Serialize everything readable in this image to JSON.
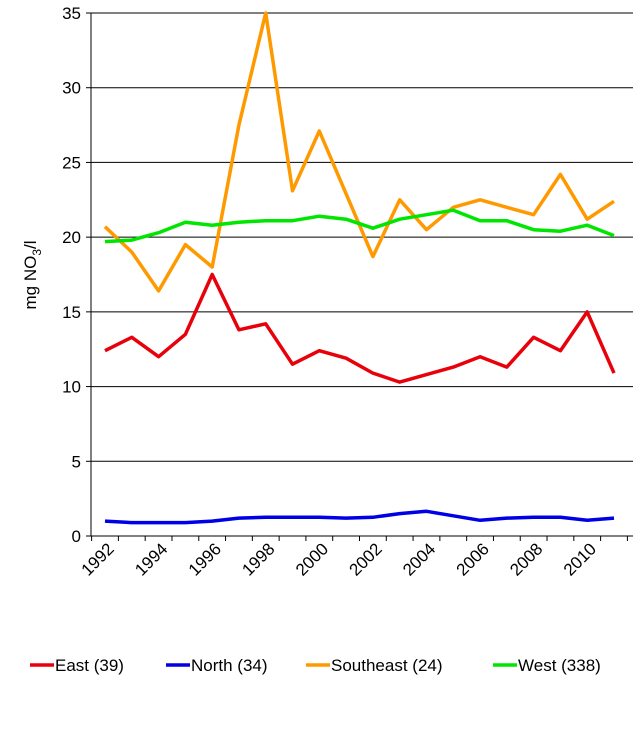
{
  "chart_data": {
    "type": "line",
    "title": "",
    "xlabel": "",
    "ylabel": "mg NO3/l",
    "ylabel_parts": {
      "main": "mg NO",
      "sub": "3",
      "tail": "/l"
    },
    "ylim": [
      0,
      35
    ],
    "yticks": [
      "0",
      "5",
      "10",
      "15",
      "20",
      "25",
      "30",
      "35"
    ],
    "x": [
      1992,
      1993,
      1994,
      1995,
      1996,
      1997,
      1998,
      1999,
      2000,
      2001,
      2002,
      2003,
      2004,
      2005,
      2006,
      2007,
      2008,
      2009,
      2010,
      2011
    ],
    "xtick_labels": [
      "1992",
      "1994",
      "1996",
      "1998",
      "2000",
      "2002",
      "2004",
      "2006",
      "2008",
      "2010"
    ],
    "grid": "horizontal",
    "legend_position": "bottom",
    "series": [
      {
        "name": "East (39)",
        "color": "#e8000b",
        "values": [
          12.4,
          13.3,
          12.0,
          13.5,
          17.5,
          13.8,
          14.2,
          11.5,
          12.4,
          11.9,
          10.9,
          10.3,
          10.8,
          11.3,
          12.0,
          11.3,
          13.3,
          12.4,
          15.0,
          10.9
        ]
      },
      {
        "name": "North (34)",
        "color": "#0000e6",
        "values": [
          1.0,
          0.9,
          0.9,
          0.9,
          1.0,
          1.2,
          1.25,
          1.25,
          1.25,
          1.2,
          1.25,
          1.5,
          1.65,
          1.35,
          1.05,
          1.2,
          1.25,
          1.25,
          1.05,
          1.2
        ]
      },
      {
        "name": "Southeast (24)",
        "color": "#ff9900",
        "values": [
          20.7,
          19.0,
          16.4,
          19.5,
          18.0,
          27.5,
          35.0,
          23.1,
          27.1,
          22.9,
          18.7,
          22.5,
          20.5,
          22.0,
          22.5,
          22.0,
          21.5,
          24.2,
          21.2,
          22.4
        ]
      },
      {
        "name": "West (338)",
        "color": "#00e600",
        "values": [
          19.7,
          19.8,
          20.3,
          21.0,
          20.8,
          21.0,
          21.1,
          21.1,
          21.4,
          21.2,
          20.6,
          21.2,
          21.5,
          21.8,
          21.1,
          21.1,
          20.5,
          20.4,
          20.8,
          20.1
        ]
      }
    ]
  }
}
